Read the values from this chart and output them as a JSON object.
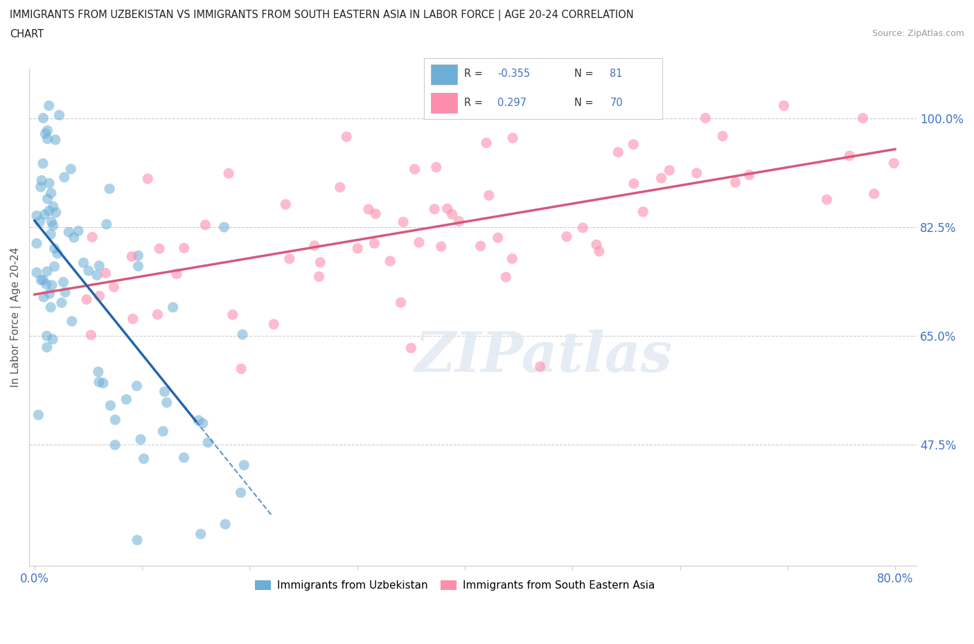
{
  "title_line1": "IMMIGRANTS FROM UZBEKISTAN VS IMMIGRANTS FROM SOUTH EASTERN ASIA IN LABOR FORCE | AGE 20-24 CORRELATION",
  "title_line2": "CHART",
  "source": "Source: ZipAtlas.com",
  "ylabel": "In Labor Force | Age 20-24",
  "xmin": 0.0,
  "xmax": 0.8,
  "ymin": 0.28,
  "ymax": 1.08,
  "yticks": [
    0.475,
    0.65,
    0.825,
    1.0
  ],
  "ytick_labels": [
    "47.5%",
    "65.0%",
    "82.5%",
    "100.0%"
  ],
  "legend_blue_label": "Immigrants from Uzbekistan",
  "legend_pink_label": "Immigrants from South Eastern Asia",
  "R_blue": -0.355,
  "N_blue": 81,
  "R_pink": 0.297,
  "N_pink": 70,
  "blue_color": "#6baed6",
  "pink_color": "#fc8eac",
  "blue_line_color": "#2166ac",
  "pink_line_color": "#d6587a",
  "blue_alpha": 0.55,
  "pink_alpha": 0.6
}
